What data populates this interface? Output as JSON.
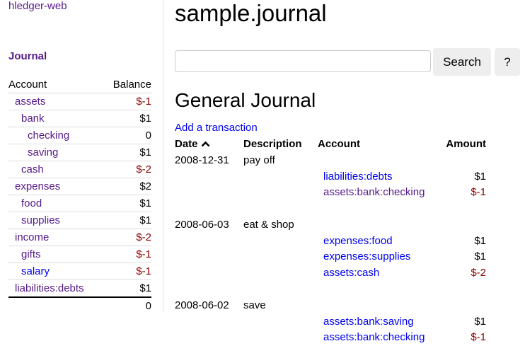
{
  "sidebar": {
    "brand": "hledger-web",
    "journal_link": "Journal",
    "headers": {
      "account": "Account",
      "balance": "Balance"
    },
    "accounts": [
      {
        "name": "assets",
        "balance": "$-1",
        "depth": 0,
        "negative": true,
        "visited": true
      },
      {
        "name": "bank",
        "balance": "$1",
        "depth": 1,
        "negative": false,
        "visited": true
      },
      {
        "name": "checking",
        "balance": "0",
        "depth": 2,
        "negative": false,
        "visited": true
      },
      {
        "name": "saving",
        "balance": "$1",
        "depth": 2,
        "negative": false,
        "visited": true
      },
      {
        "name": "cash",
        "balance": "$-2",
        "depth": 1,
        "negative": true,
        "visited": true
      },
      {
        "name": "expenses",
        "balance": "$2",
        "depth": 0,
        "negative": false,
        "visited": true
      },
      {
        "name": "food",
        "balance": "$1",
        "depth": 1,
        "negative": false,
        "visited": true
      },
      {
        "name": "supplies",
        "balance": "$1",
        "depth": 1,
        "negative": false,
        "visited": true
      },
      {
        "name": "income",
        "balance": "$-2",
        "depth": 0,
        "negative": true,
        "visited": true
      },
      {
        "name": "gifts",
        "balance": "$-1",
        "depth": 1,
        "negative": true,
        "visited": true
      },
      {
        "name": "salary",
        "balance": "$-1",
        "depth": 1,
        "negative": true,
        "visited": false
      },
      {
        "name": "liabilities:debts",
        "balance": "$1",
        "depth": 0,
        "negative": false,
        "visited": true
      }
    ],
    "total": "0"
  },
  "main": {
    "title": "sample.journal",
    "search": {
      "value": "",
      "placeholder": "",
      "button": "Search",
      "help": "?"
    },
    "heading": "General Journal",
    "add_transaction": "Add a transaction",
    "columns": {
      "date": "Date",
      "description": "Description",
      "account": "Account",
      "amount": "Amount"
    },
    "sort_icon": "caret-up-icon",
    "transactions": [
      {
        "date": "2008-12-31",
        "description": "pay off",
        "postings": [
          {
            "account": "liabilities:debts",
            "amount": "$1",
            "negative": false,
            "visited": false
          },
          {
            "account": "assets:bank:checking",
            "amount": "$-1",
            "negative": true,
            "visited": true
          }
        ]
      },
      {
        "date": "2008-06-03",
        "description": "eat & shop",
        "postings": [
          {
            "account": "expenses:food",
            "amount": "$1",
            "negative": false,
            "visited": false
          },
          {
            "account": "expenses:supplies",
            "amount": "$1",
            "negative": false,
            "visited": false
          },
          {
            "account": "assets:cash",
            "amount": "$-2",
            "negative": true,
            "visited": false
          }
        ]
      },
      {
        "date": "2008-06-02",
        "description": "save",
        "postings": [
          {
            "account": "assets:bank:saving",
            "amount": "$1",
            "negative": false,
            "visited": false
          },
          {
            "account": "assets:bank:checking",
            "amount": "$-1",
            "negative": true,
            "visited": false
          }
        ]
      }
    ]
  },
  "colors": {
    "link": "#0000ee",
    "visited": "#551a8b",
    "negative": "#8b0000",
    "button_bg": "#eeeeee"
  }
}
